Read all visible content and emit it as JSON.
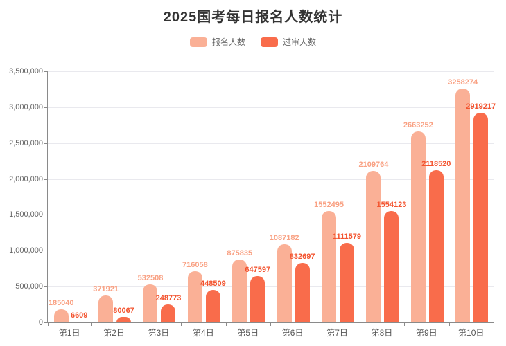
{
  "title": "2025国考每日报名人数统计",
  "chart_data": {
    "type": "bar",
    "title": "2025国考每日报名人数统计",
    "categories": [
      "第1日",
      "第2日",
      "第3日",
      "第4日",
      "第5日",
      "第6日",
      "第7日",
      "第8日",
      "第9日",
      "第10日"
    ],
    "series": [
      {
        "name": "报名人数",
        "color": "#FAB096",
        "label_color": "#F9A183",
        "values": [
          185040,
          371921,
          532508,
          716058,
          875835,
          1087182,
          1552495,
          2109764,
          2663252,
          3258274
        ]
      },
      {
        "name": "过审人数",
        "color": "#F96C4B",
        "label_color": "#F3532E",
        "values": [
          6609,
          80067,
          248773,
          448509,
          647597,
          832697,
          1111579,
          1554123,
          2118520,
          2919217
        ]
      }
    ],
    "ylim": [
      0,
      3500000
    ],
    "ytick_interval": 500000,
    "ytick_labels": [
      "0",
      "500,000",
      "1,000,000",
      "1,500,000",
      "2,000,000",
      "2,500,000",
      "3,000,000",
      "3,500,000"
    ],
    "xlabel": "",
    "ylabel": "",
    "grid": true,
    "legend_position": "top",
    "colors": {
      "title_color": "#333333",
      "axis_color": "#8a8a8a",
      "grid_color": "#e9e9ee",
      "axis_text_color": "#666666",
      "category_text_color": "#555555"
    }
  }
}
